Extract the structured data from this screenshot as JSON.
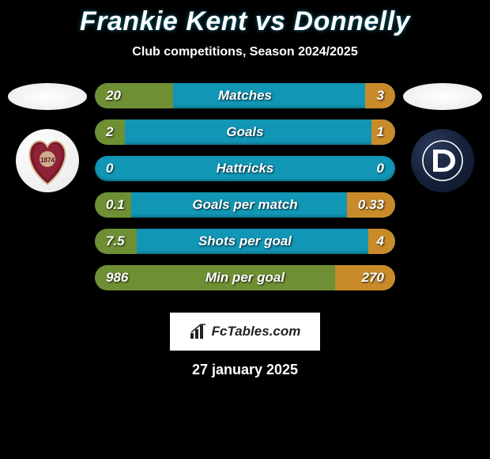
{
  "title": "Frankie Kent vs Donnelly",
  "subtitle": "Club competitions, Season 2024/2025",
  "date": "27 january 2025",
  "brand": {
    "text": "FcTables.com"
  },
  "colors": {
    "bar_blue": "#1196b5",
    "bar_green": "#6e8f33",
    "bar_orange": "#c98b2a",
    "background": "#000000"
  },
  "players": {
    "left": {
      "name": "Frankie Kent",
      "club": "Hearts"
    },
    "right": {
      "name": "Donnelly",
      "club": "Dundee"
    }
  },
  "stats": [
    {
      "label": "Matches",
      "left_value": "20",
      "right_value": "3",
      "track_color": "#1196b5",
      "left_fill_color": "#6e8f33",
      "left_fill_pct": 26,
      "right_fill_color": "#c98b2a",
      "right_fill_pct": 10
    },
    {
      "label": "Goals",
      "left_value": "2",
      "right_value": "1",
      "track_color": "#1196b5",
      "left_fill_color": "#6e8f33",
      "left_fill_pct": 10,
      "right_fill_color": "#c98b2a",
      "right_fill_pct": 8
    },
    {
      "label": "Hattricks",
      "left_value": "0",
      "right_value": "0",
      "track_color": "#1196b5",
      "left_fill_color": "#6e8f33",
      "left_fill_pct": 0,
      "right_fill_color": "#c98b2a",
      "right_fill_pct": 0
    },
    {
      "label": "Goals per match",
      "left_value": "0.1",
      "right_value": "0.33",
      "track_color": "#1196b5",
      "left_fill_color": "#6e8f33",
      "left_fill_pct": 12,
      "right_fill_color": "#c98b2a",
      "right_fill_pct": 16
    },
    {
      "label": "Shots per goal",
      "left_value": "7.5",
      "right_value": "4",
      "track_color": "#1196b5",
      "left_fill_color": "#6e8f33",
      "left_fill_pct": 14,
      "right_fill_color": "#c98b2a",
      "right_fill_pct": 9
    },
    {
      "label": "Min per goal",
      "left_value": "986",
      "right_value": "270",
      "track_color": "#6e8f33",
      "left_fill_color": "#6e8f33",
      "left_fill_pct": 100,
      "right_fill_color": "#c98b2a",
      "right_fill_pct": 20
    }
  ]
}
